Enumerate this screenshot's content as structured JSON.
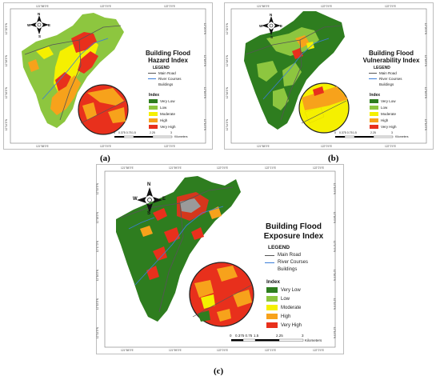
{
  "panels": {
    "a": {
      "label": "(a)",
      "title_line1": "Building Flood",
      "title_line2": "Hazard Index",
      "coords_top": [
        "121°58'0\"E",
        "122°0'0\"E",
        "122°2'0\"E"
      ],
      "coords_bottom": [
        "121°58'0\"E",
        "122°0'0\"E",
        "122°2'0\"E"
      ],
      "coords_left": [
        "12°20'0\"N",
        "12°18'0\"N",
        "12°16'0\"N",
        "12°14'0\"N"
      ],
      "coords_right": [
        "12°20'0\"N",
        "12°18'0\"N",
        "12°16'0\"N",
        "12°14'0\"N"
      ]
    },
    "b": {
      "label": "(b)",
      "title_line1": "Building Flood",
      "title_line2": "Vulnerability Index",
      "coords_top": [
        "121°58'0\"E",
        "122°0'0\"E",
        "122°2'0\"E"
      ],
      "coords_bottom": [
        "121°58'0\"E",
        "122°0'0\"E",
        "122°2'0\"E"
      ],
      "coords_left": [
        "12°20'0\"N",
        "12°18'0\"N",
        "12°16'0\"N",
        "12°14'0\"N"
      ],
      "coords_right": [
        "12°20'0\"N",
        "12°18'0\"N",
        "12°16'0\"N",
        "12°14'0\"N"
      ]
    },
    "c": {
      "label": "(c)",
      "title_line1": "Building Flood",
      "title_line2": "Exposure Index",
      "coords_top": [
        "121°58'0\"E",
        "121°59'0\"E",
        "122°0'0\"E",
        "122°1'0\"E",
        "122°2'0\"E"
      ],
      "coords_bottom": [
        "121°58'0\"E",
        "121°59'0\"E",
        "122°0'0\"E",
        "122°1'0\"E",
        "122°2'0\"E"
      ],
      "coords_left": [
        "12°19'0\"N",
        "12°18'0\"N",
        "12°17'0\"N",
        "12°16'0\"N",
        "12°15'0\"N",
        "12°14'0\"N"
      ],
      "coords_right": [
        "12°19'0\"N",
        "12°18'0\"N",
        "12°17'0\"N",
        "12°16'0\"N",
        "12°15'0\"N",
        "12°14'0\"N"
      ]
    }
  },
  "compass": {
    "n": "N",
    "s": "S",
    "e": "E",
    "w": "W"
  },
  "legend": {
    "heading": "LEGEND",
    "lines": [
      {
        "label": "Main Road",
        "color": "#555555"
      },
      {
        "label": "River Courses",
        "color": "#3b7dd8"
      },
      {
        "label": "Buildings",
        "color": "#ffffff"
      }
    ],
    "index_heading": "Index",
    "classes": [
      {
        "label": "Very Low",
        "color": "#2e7d1f"
      },
      {
        "label": "Low",
        "color": "#8dc63f"
      },
      {
        "label": "Moderate",
        "color": "#f5f000"
      },
      {
        "label": "High",
        "color": "#f7a21b"
      },
      {
        "label": "Very High",
        "color": "#e8301c"
      }
    ]
  },
  "scalebar": {
    "ticks": [
      "0",
      "0.375 0.75",
      "1.5",
      "2.25",
      "3"
    ],
    "unit": "Kilometers",
    "unit_c": "Kilometers"
  }
}
